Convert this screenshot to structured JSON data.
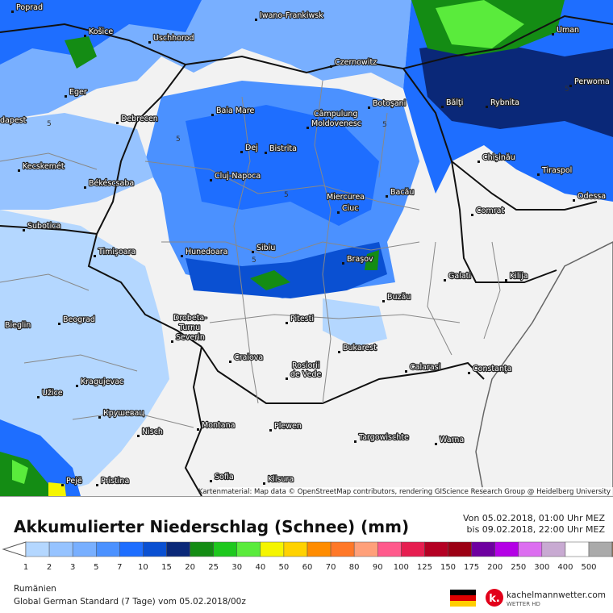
{
  "map": {
    "cities": [
      "Poprad",
      "Košice",
      "Uschhorod",
      "Iwano-Frankiwsk",
      "Czernowitz",
      "Uman",
      "Perwoma",
      "Eger",
      "dapest",
      "Debrecen",
      "Baia Mare",
      "Câmpulung",
      "Moldovenesc",
      "Botoşani",
      "Bălţi",
      "Rybnita",
      "Kecskemét",
      "Dej",
      "Bistrita",
      "Chişinău",
      "Tiraspol",
      "Békéscsaba",
      "Cluj-Napoca",
      "Miercurea",
      "Ciuc",
      "Bacău",
      "Odessa",
      "Comrat",
      "Subotica",
      "Timişoara",
      "Hunedoara",
      "Sibiu",
      "Braşov",
      "Galati",
      "Kilija",
      "Buzău",
      "Beograd",
      "Bieglin",
      "Drobeta-",
      "Turnu",
      "Severin",
      "Pitesti",
      "Craiova",
      "Bukarest",
      "Rosiorii",
      "de Vede",
      "Calarasi",
      "Constanţa",
      "Kragujevac",
      "Užice",
      "Крушевац",
      "Montana",
      "Plewen",
      "Nisch",
      "Targowischte",
      "Warna",
      "Pejë",
      "Pristina",
      "Sofia",
      "Klisura"
    ],
    "contour_labels": [
      "5",
      "5",
      "5",
      "5",
      "5",
      "5"
    ],
    "attribution": "Kartenmaterial: Map data © OpenStreetMap contributors, rendering GIScience Research Group @ Heidelberg University"
  },
  "header": {
    "title": "Akkumulierter Niederschlag (Schnee) (mm)",
    "from": "Von 05.02.2018, 01:00 Uhr MEZ",
    "to": "bis 09.02.2018, 22:00 Uhr MEZ"
  },
  "legend": {
    "labels": [
      1,
      2,
      3,
      5,
      7,
      10,
      15,
      20,
      25,
      30,
      40,
      50,
      60,
      70,
      80,
      90,
      100,
      125,
      150,
      175,
      200,
      250,
      300,
      400,
      500
    ],
    "colors": [
      "#b4d7ff",
      "#96c3ff",
      "#78afff",
      "#4b91ff",
      "#1e6eff",
      "#0a50d2",
      "#0a2878",
      "#148c14",
      "#1ec81e",
      "#5aeb3c",
      "#f5f500",
      "#ffd200",
      "#ff8c00",
      "#ff7828",
      "#ffa07a",
      "#ff5a8c",
      "#e61e50",
      "#b40023",
      "#9b0014",
      "#6e00a0",
      "#b400e6",
      "#dc6ef0",
      "#c8aad2",
      "#ffffff",
      "#aaaaaa"
    ],
    "low_color": "#ffffff",
    "high_color": "#c88c5a"
  },
  "footer": {
    "region": "Rumänien",
    "model": "Global German Standard (7 Tage) vom 05.02.2018/00z",
    "brand": "kachelmannwetter.com",
    "brand_sub": "WETTER HD"
  }
}
